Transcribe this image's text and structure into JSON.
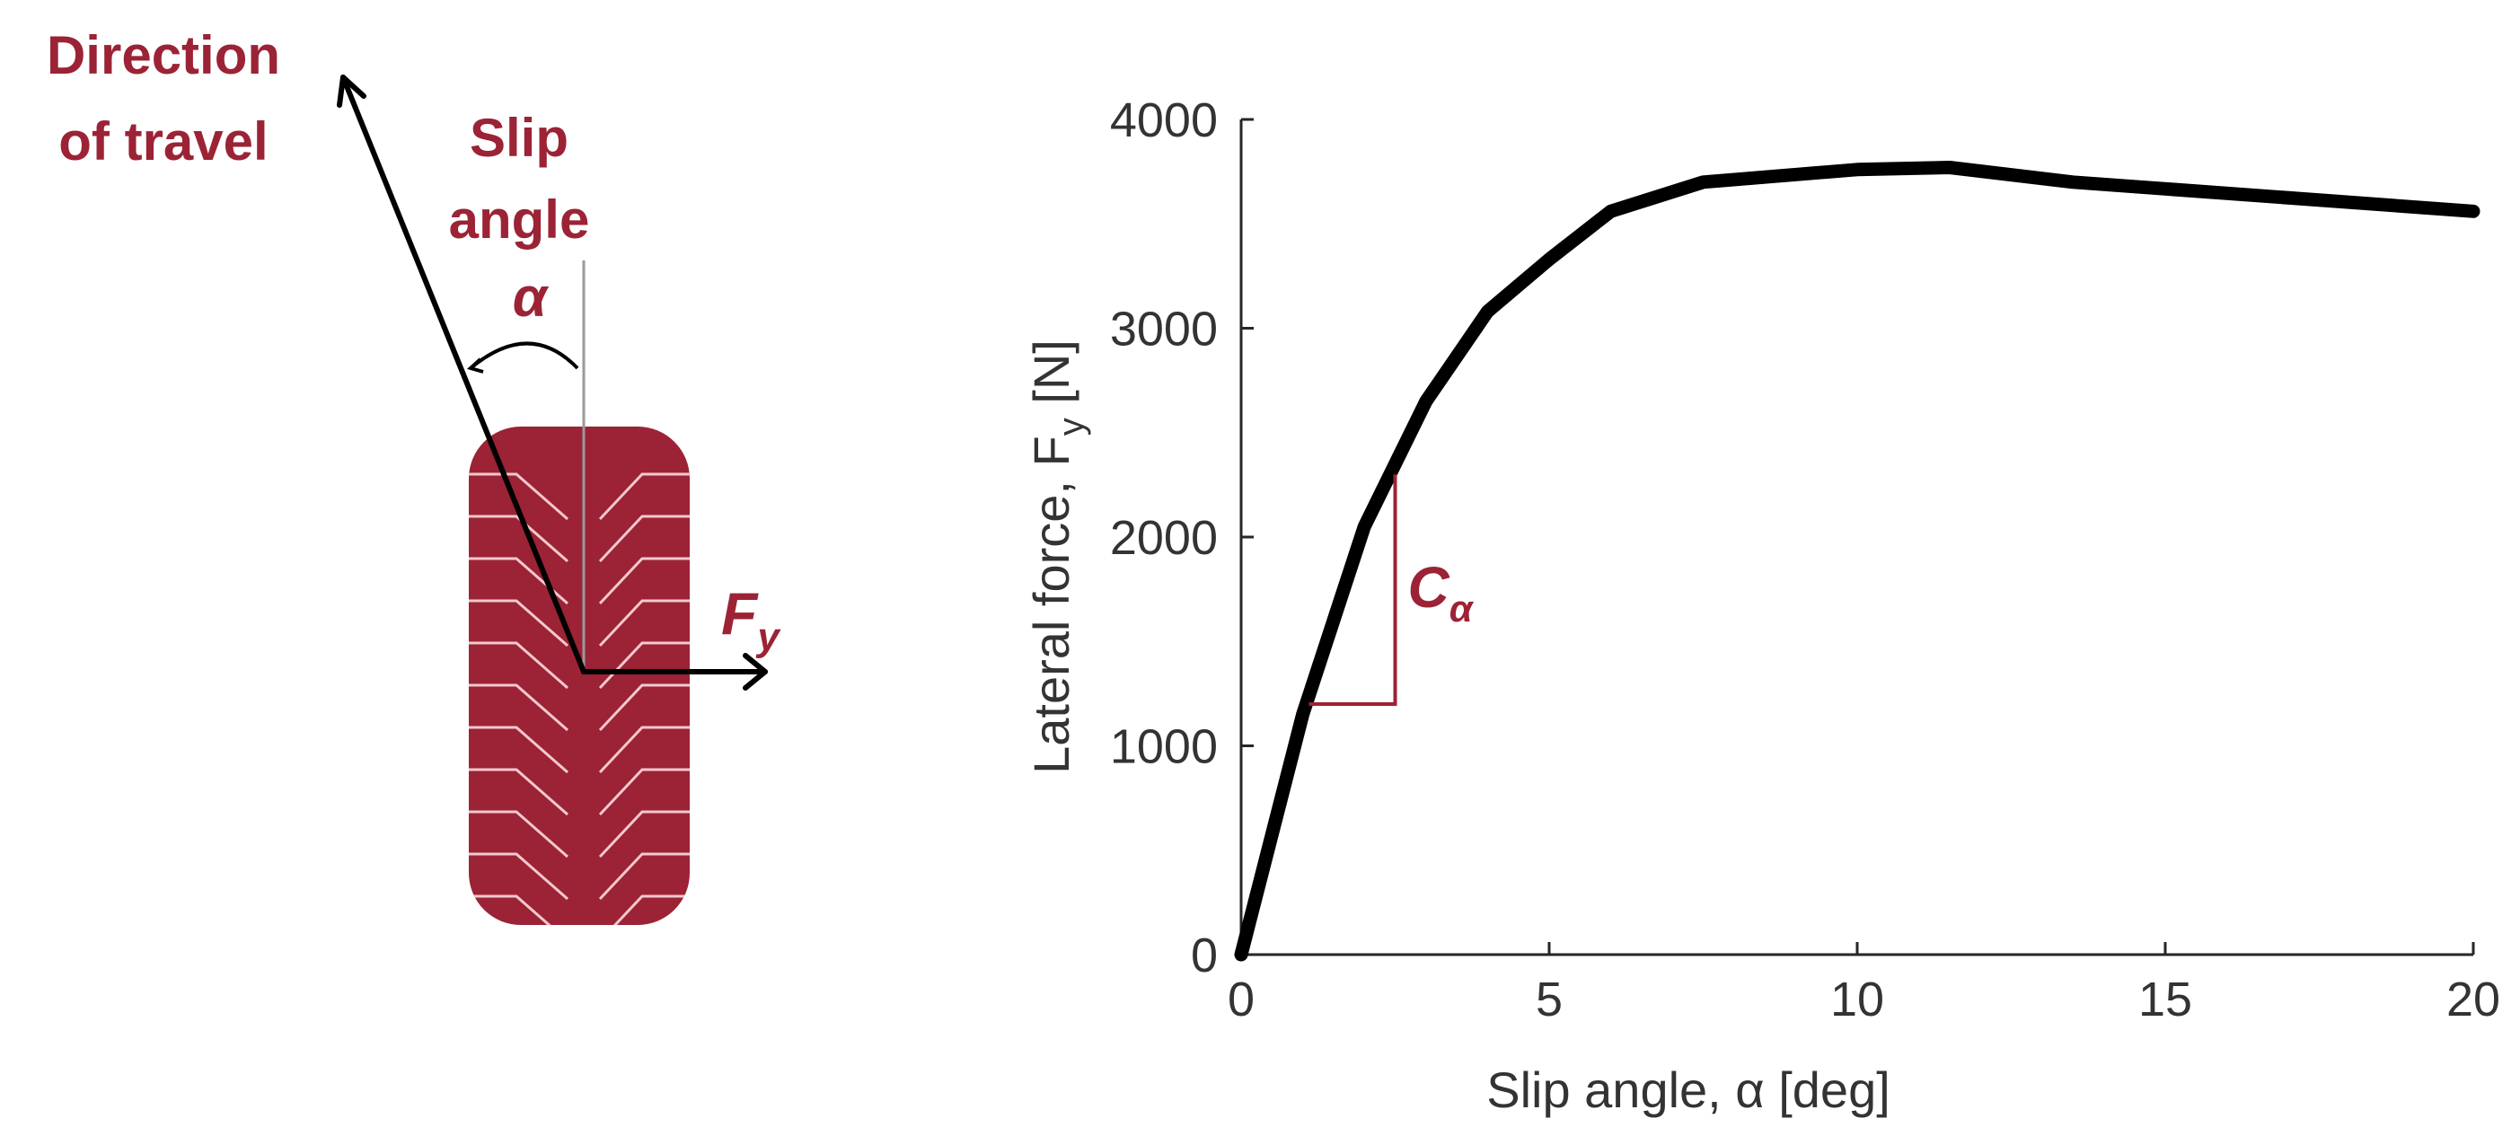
{
  "diagram": {
    "direction_label_line1": "Direction",
    "direction_label_line2": "of travel",
    "slip_label_line1": "Slip",
    "slip_label_line2": "angle",
    "alpha_symbol": "α",
    "force_symbol": "F",
    "force_subscript": "y",
    "tire_color": "#9b2335",
    "accent_color": "#9b2335"
  },
  "chart_data": {
    "type": "line",
    "xlabel": "Slip angle, α [deg]",
    "ylabel": "Lateral force, F",
    "ylabel_subscript": "y",
    "ylabel_suffix": " [N]",
    "xlim": [
      0,
      20
    ],
    "ylim": [
      0,
      4000
    ],
    "x_ticks": [
      0,
      5,
      10,
      15,
      20
    ],
    "y_ticks": [
      0,
      1000,
      2000,
      3000,
      4000
    ],
    "grid": false,
    "series": [
      {
        "x": [
          0,
          1,
          2,
          3,
          4,
          5,
          6,
          7.5,
          10,
          11.5,
          13.5,
          20
        ],
        "y": [
          0,
          1150,
          2050,
          2650,
          3080,
          3330,
          3560,
          3700,
          3760,
          3770,
          3700,
          3560
        ],
        "color": "#000000"
      }
    ],
    "annotation": {
      "label": "C",
      "label_subscript": "α",
      "x_start": 1.1,
      "x_end": 2.5,
      "y_start": 1200,
      "y_end": 2300,
      "color": "#9b2335"
    }
  }
}
